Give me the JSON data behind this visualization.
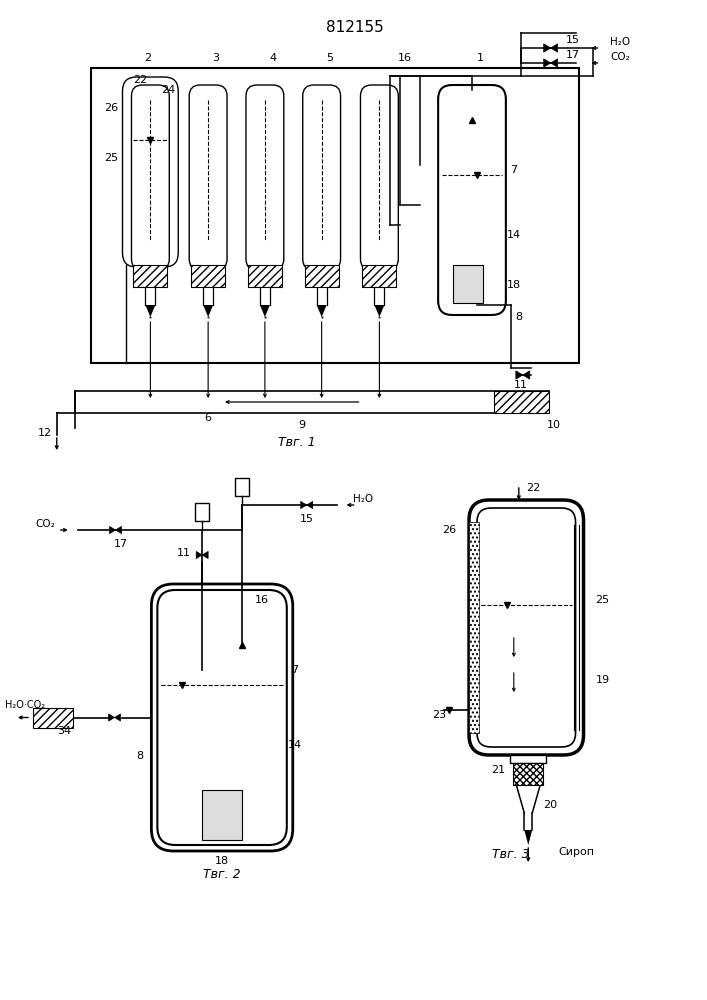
{
  "title": "812155",
  "bg_color": "#ffffff",
  "lc": "#000000",
  "fig1_label": "Τвг. 1",
  "fig2_label": "Τвг. 2",
  "fig3_label": "Τвг. 3",
  "fig3_label_syrup": "Сироп"
}
